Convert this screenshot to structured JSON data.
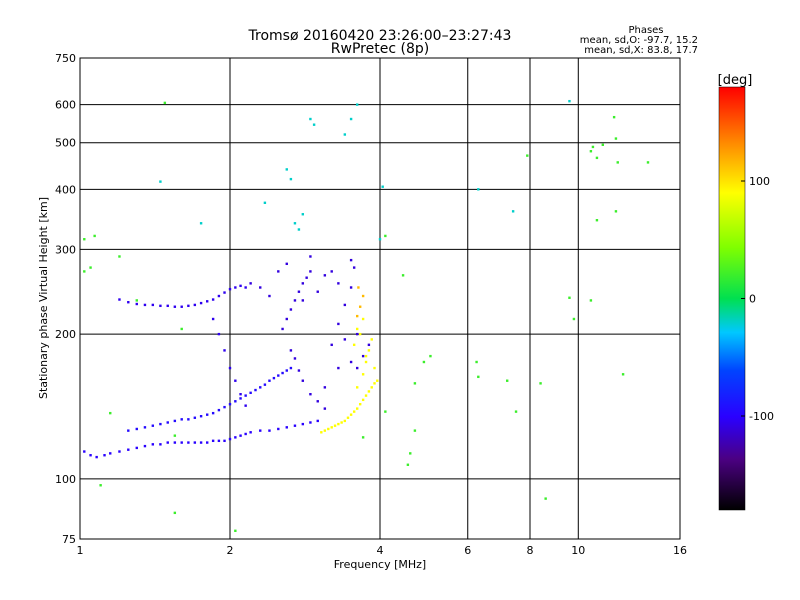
{
  "chart_data": {
    "type": "scatter",
    "title": "Tromsø 20160420 23:26:00–23:27:43",
    "subtitle": "RwPretec (8p)",
    "xlabel": "Frequency [MHz]",
    "ylabel": "Stationary phase Virtual Height [km]",
    "x_scale": "log2",
    "y_scale": "log",
    "xlim": [
      1,
      16
    ],
    "ylim": [
      75,
      750
    ],
    "x_ticks": [
      1,
      2,
      4,
      6,
      8,
      10,
      16
    ],
    "x_tick_labels": [
      "1",
      "2",
      "4",
      "6",
      "8",
      "10",
      "16"
    ],
    "y_ticks": [
      75,
      100,
      200,
      300,
      400,
      500,
      600,
      750
    ],
    "y_tick_labels": [
      "75",
      "100",
      "200",
      "300",
      "400",
      "500",
      "600",
      "750"
    ],
    "phase_header": "Phases",
    "phase_o": "mean, sd,O: -97.7, 15.2",
    "phase_x": "mean, sd,X:  83.8, 17.7",
    "colorbar": {
      "label": "[deg]",
      "range": [
        -180,
        180
      ],
      "ticks": [
        -100,
        0,
        100
      ],
      "tick_labels": [
        "-100",
        "0",
        "100"
      ]
    },
    "series": [
      {
        "trace": "o_mode",
        "phase": -100,
        "points": [
          [
            1.02,
            114
          ],
          [
            1.05,
            112
          ],
          [
            1.08,
            111
          ],
          [
            1.12,
            112
          ],
          [
            1.15,
            113
          ],
          [
            1.2,
            114
          ],
          [
            1.25,
            115
          ],
          [
            1.3,
            116
          ],
          [
            1.35,
            117
          ],
          [
            1.4,
            118
          ],
          [
            1.45,
            118
          ],
          [
            1.5,
            119
          ],
          [
            1.55,
            119
          ],
          [
            1.6,
            119
          ],
          [
            1.65,
            119
          ],
          [
            1.7,
            119
          ],
          [
            1.75,
            119
          ],
          [
            1.8,
            119
          ],
          [
            1.85,
            120
          ],
          [
            1.9,
            120
          ],
          [
            1.95,
            120
          ],
          [
            2.0,
            121
          ],
          [
            2.05,
            122
          ],
          [
            2.1,
            123
          ],
          [
            2.15,
            124
          ],
          [
            2.2,
            125
          ],
          [
            2.3,
            126
          ],
          [
            2.4,
            126
          ],
          [
            2.5,
            127
          ],
          [
            2.6,
            128
          ],
          [
            2.7,
            129
          ],
          [
            2.8,
            130
          ],
          [
            2.9,
            131
          ],
          [
            3.0,
            132
          ]
        ]
      },
      {
        "trace": "o_upper",
        "phase": -95,
        "points": [
          [
            1.25,
            126
          ],
          [
            1.3,
            127
          ],
          [
            1.35,
            128
          ],
          [
            1.4,
            129
          ],
          [
            1.45,
            130
          ],
          [
            1.5,
            131
          ],
          [
            1.55,
            132
          ],
          [
            1.6,
            133
          ],
          [
            1.65,
            133
          ],
          [
            1.7,
            134
          ],
          [
            1.75,
            135
          ],
          [
            1.8,
            136
          ],
          [
            1.85,
            137
          ],
          [
            1.9,
            139
          ],
          [
            1.95,
            141
          ],
          [
            2.0,
            143
          ],
          [
            2.05,
            145
          ],
          [
            2.1,
            147
          ],
          [
            2.15,
            149
          ],
          [
            2.2,
            151
          ],
          [
            2.25,
            153
          ],
          [
            2.3,
            155
          ],
          [
            2.35,
            157
          ],
          [
            2.4,
            160
          ],
          [
            2.45,
            162
          ],
          [
            2.5,
            164
          ],
          [
            2.55,
            166
          ],
          [
            2.6,
            168
          ],
          [
            2.65,
            170
          ]
        ]
      },
      {
        "trace": "o_spread",
        "phase": -110,
        "points": [
          [
            2.55,
            205
          ],
          [
            2.6,
            215
          ],
          [
            2.65,
            225
          ],
          [
            2.7,
            235
          ],
          [
            2.75,
            245
          ],
          [
            2.8,
            255
          ],
          [
            2.85,
            262
          ],
          [
            2.9,
            270
          ],
          [
            2.65,
            185
          ],
          [
            2.7,
            178
          ],
          [
            2.75,
            168
          ],
          [
            2.8,
            160
          ],
          [
            2.9,
            150
          ],
          [
            3.0,
            145
          ],
          [
            3.1,
            140
          ],
          [
            3.2,
            190
          ],
          [
            3.3,
            210
          ],
          [
            3.4,
            195
          ],
          [
            3.5,
            175
          ],
          [
            3.6,
            170
          ],
          [
            3.4,
            230
          ],
          [
            3.5,
            250
          ],
          [
            3.3,
            255
          ],
          [
            3.2,
            270
          ],
          [
            3.1,
            265
          ],
          [
            3.0,
            245
          ],
          [
            2.9,
            290
          ],
          [
            2.8,
            235
          ],
          [
            2.6,
            280
          ],
          [
            2.5,
            270
          ],
          [
            3.5,
            285
          ],
          [
            3.55,
            275
          ],
          [
            3.3,
            170
          ],
          [
            3.1,
            155
          ],
          [
            3.7,
            180
          ],
          [
            3.8,
            190
          ],
          [
            3.6,
            200
          ],
          [
            2.4,
            240
          ],
          [
            2.3,
            250
          ],
          [
            2.2,
            255
          ]
        ]
      },
      {
        "trace": "o_f1_ledge",
        "phase": -105,
        "points": [
          [
            1.35,
            230
          ],
          [
            1.4,
            230
          ],
          [
            1.45,
            229
          ],
          [
            1.5,
            229
          ],
          [
            1.55,
            228
          ],
          [
            1.6,
            228
          ],
          [
            1.65,
            229
          ],
          [
            1.7,
            230
          ],
          [
            1.75,
            232
          ],
          [
            1.8,
            234
          ],
          [
            1.85,
            236
          ],
          [
            1.9,
            240
          ],
          [
            1.95,
            244
          ],
          [
            2.0,
            248
          ],
          [
            2.05,
            250
          ],
          [
            2.1,
            252
          ],
          [
            2.15,
            250
          ],
          [
            1.85,
            215
          ],
          [
            1.9,
            200
          ],
          [
            1.95,
            185
          ],
          [
            2.0,
            170
          ],
          [
            2.05,
            160
          ],
          [
            2.1,
            150
          ],
          [
            2.15,
            142
          ],
          [
            1.2,
            236
          ],
          [
            1.25,
            233
          ],
          [
            1.3,
            231
          ]
        ]
      },
      {
        "trace": "x_mode",
        "phase": 90,
        "points": [
          [
            3.05,
            125
          ],
          [
            3.1,
            126
          ],
          [
            3.15,
            127
          ],
          [
            3.2,
            128
          ],
          [
            3.25,
            129
          ],
          [
            3.3,
            130
          ],
          [
            3.35,
            131
          ],
          [
            3.4,
            132
          ],
          [
            3.45,
            134
          ],
          [
            3.5,
            136
          ],
          [
            3.55,
            138
          ],
          [
            3.6,
            140
          ],
          [
            3.65,
            143
          ],
          [
            3.7,
            146
          ],
          [
            3.75,
            149
          ],
          [
            3.8,
            152
          ],
          [
            3.85,
            155
          ],
          [
            3.9,
            158
          ],
          [
            3.95,
            160
          ],
          [
            3.6,
            155
          ],
          [
            3.7,
            165
          ],
          [
            3.75,
            175
          ],
          [
            3.8,
            185
          ],
          [
            3.85,
            195
          ],
          [
            3.6,
            205
          ],
          [
            3.7,
            215
          ],
          [
            3.75,
            180
          ],
          [
            3.9,
            170
          ],
          [
            3.55,
            190
          ],
          [
            3.65,
            200
          ]
        ]
      },
      {
        "trace": "x_top",
        "phase": 115,
        "points": [
          [
            3.6,
            218
          ],
          [
            3.65,
            228
          ],
          [
            3.7,
            240
          ],
          [
            3.62,
            250
          ]
        ]
      },
      {
        "trace": "high_echoes",
        "phase": -20,
        "points": [
          [
            2.9,
            560
          ],
          [
            2.95,
            545
          ],
          [
            3.5,
            560
          ],
          [
            3.6,
            600
          ],
          [
            3.4,
            520
          ],
          [
            2.6,
            440
          ],
          [
            2.65,
            420
          ],
          [
            2.8,
            355
          ],
          [
            2.7,
            340
          ],
          [
            2.75,
            330
          ],
          [
            2.35,
            375
          ],
          [
            1.75,
            340
          ],
          [
            1.45,
            415
          ],
          [
            4.05,
            405
          ],
          [
            6.3,
            400
          ],
          [
            7.4,
            360
          ],
          [
            9.6,
            610
          ],
          [
            4.0,
            315
          ]
        ]
      },
      {
        "trace": "stray_echoes",
        "phase": 20,
        "points": [
          [
            1.02,
            315
          ],
          [
            1.07,
            320
          ],
          [
            1.2,
            290
          ],
          [
            1.02,
            270
          ],
          [
            1.05,
            275
          ],
          [
            1.6,
            205
          ],
          [
            1.3,
            235
          ],
          [
            4.1,
            320
          ],
          [
            4.45,
            265
          ],
          [
            4.9,
            175
          ],
          [
            5.05,
            180
          ],
          [
            4.7,
            158
          ],
          [
            4.6,
            113
          ],
          [
            4.55,
            107
          ],
          [
            6.25,
            175
          ],
          [
            6.3,
            163
          ],
          [
            7.2,
            160
          ],
          [
            7.5,
            138
          ],
          [
            8.4,
            158
          ],
          [
            8.6,
            91
          ],
          [
            7.9,
            470
          ],
          [
            10.6,
            480
          ],
          [
            10.9,
            465
          ],
          [
            12.0,
            455
          ],
          [
            13.8,
            455
          ],
          [
            10.6,
            235
          ],
          [
            9.8,
            215
          ],
          [
            11.9,
            360
          ],
          [
            10.9,
            345
          ],
          [
            11.2,
            495
          ],
          [
            9.6,
            238
          ],
          [
            12.3,
            165
          ],
          [
            1.15,
            137
          ],
          [
            1.55,
            123
          ],
          [
            1.1,
            97
          ],
          [
            1.55,
            85
          ],
          [
            2.05,
            78
          ],
          [
            4.1,
            138
          ],
          [
            4.7,
            126
          ],
          [
            3.7,
            122
          ],
          [
            1.48,
            605
          ],
          [
            11.8,
            565
          ],
          [
            11.9,
            510
          ],
          [
            10.7,
            490
          ]
        ]
      }
    ]
  }
}
